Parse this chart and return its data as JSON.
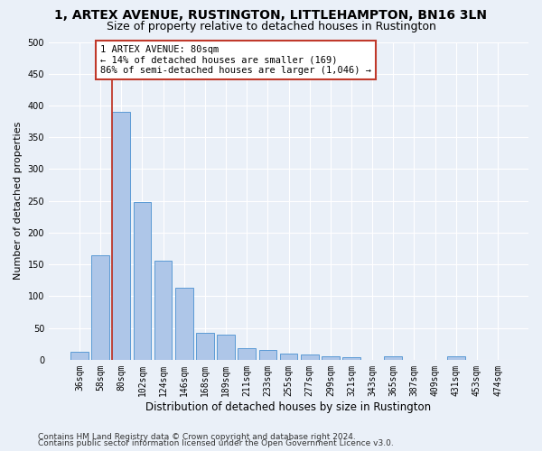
{
  "title1": "1, ARTEX AVENUE, RUSTINGTON, LITTLEHAMPTON, BN16 3LN",
  "title2": "Size of property relative to detached houses in Rustington",
  "xlabel": "Distribution of detached houses by size in Rustington",
  "ylabel": "Number of detached properties",
  "categories": [
    "36sqm",
    "58sqm",
    "80sqm",
    "102sqm",
    "124sqm",
    "146sqm",
    "168sqm",
    "189sqm",
    "211sqm",
    "233sqm",
    "255sqm",
    "277sqm",
    "299sqm",
    "321sqm",
    "343sqm",
    "365sqm",
    "387sqm",
    "409sqm",
    "431sqm",
    "453sqm",
    "474sqm"
  ],
  "values": [
    13,
    165,
    390,
    248,
    156,
    114,
    43,
    39,
    18,
    15,
    9,
    8,
    5,
    4,
    0,
    5,
    0,
    0,
    5,
    0,
    0
  ],
  "bar_color": "#aec6e8",
  "bar_edge_color": "#5b9bd5",
  "highlight_index": 2,
  "highlight_line_color": "#c0392b",
  "annotation_text": "1 ARTEX AVENUE: 80sqm\n← 14% of detached houses are smaller (169)\n86% of semi-detached houses are larger (1,046) →",
  "annotation_box_color": "#ffffff",
  "annotation_box_edge_color": "#c0392b",
  "ylim": [
    0,
    500
  ],
  "yticks": [
    0,
    50,
    100,
    150,
    200,
    250,
    300,
    350,
    400,
    450,
    500
  ],
  "footer1": "Contains HM Land Registry data © Crown copyright and database right 2024.",
  "footer2": "Contains public sector information licensed under the Open Government Licence v3.0.",
  "background_color": "#eaf0f8",
  "plot_background_color": "#eaf0f8",
  "title1_fontsize": 10,
  "title2_fontsize": 9,
  "xlabel_fontsize": 8.5,
  "ylabel_fontsize": 8,
  "tick_fontsize": 7,
  "annotation_fontsize": 7.5,
  "footer_fontsize": 6.5
}
